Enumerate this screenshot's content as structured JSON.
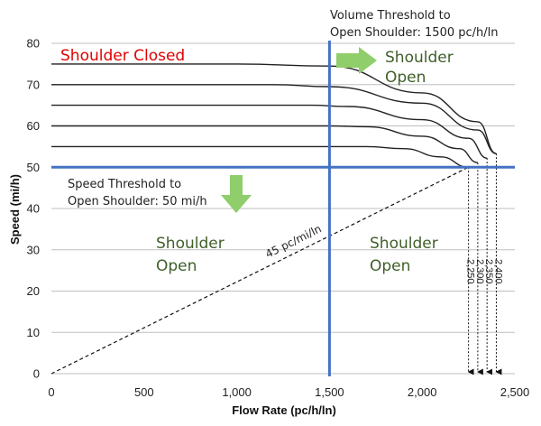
{
  "chart_data": {
    "type": "line",
    "title": "",
    "xlabel": "Flow Rate (pc/h/ln)",
    "ylabel": "Speed (mi/h)",
    "xlim": [
      0,
      2500
    ],
    "ylim": [
      0,
      80
    ],
    "x_ticks": [
      "0",
      "500",
      "1,000",
      "1,500",
      "2,000",
      "2,500"
    ],
    "y_ticks": [
      "0",
      "10",
      "20",
      "30",
      "40",
      "50",
      "60",
      "70",
      "80"
    ],
    "grid": "horizontal",
    "legend": "none",
    "series": [
      {
        "free_flow_speed": 75,
        "capacity": 2400,
        "x": [
          0,
          1000,
          1500,
          2000,
          2300,
          2400
        ],
        "y": [
          75,
          75,
          74.5,
          68,
          61,
          53.3
        ]
      },
      {
        "free_flow_speed": 70,
        "capacity": 2400,
        "x": [
          0,
          1200,
          1500,
          2000,
          2300,
          2400
        ],
        "y": [
          70,
          70,
          69.5,
          65.5,
          59,
          53.3
        ]
      },
      {
        "free_flow_speed": 65,
        "capacity": 2350,
        "x": [
          0,
          1400,
          1600,
          2000,
          2250,
          2350
        ],
        "y": [
          65,
          65,
          64.7,
          61.5,
          57,
          52.2
        ]
      },
      {
        "free_flow_speed": 60,
        "capacity": 2300,
        "x": [
          0,
          1500,
          1700,
          2000,
          2200,
          2300
        ],
        "y": [
          60,
          60,
          59.8,
          57.5,
          54.5,
          51.1
        ]
      },
      {
        "free_flow_speed": 55,
        "capacity": 2250,
        "x": [
          0,
          1700,
          1900,
          2100,
          2250
        ],
        "y": [
          55,
          55,
          54.5,
          52.5,
          50
        ]
      }
    ],
    "density_line": {
      "label": "45 pc/mi/ln",
      "x": [
        0,
        2250
      ],
      "y": [
        0,
        50
      ]
    },
    "capacity_labels": [
      "2,250",
      "2,300",
      "2,350",
      "2,400"
    ],
    "capacity_values": [
      2250,
      2300,
      2350,
      2400
    ],
    "thresholds": {
      "flow": 1500,
      "speed": 50
    },
    "annotations": {
      "volume_threshold": [
        "Volume Threshold to",
        "Open Shoulder: 1500 pc/h/ln"
      ],
      "speed_threshold": [
        "Speed Threshold to",
        "Open Shoulder: 50 mi/h"
      ],
      "shoulder_closed": "Shoulder Closed",
      "shoulder_open_top_right": [
        "Shoulder",
        "Open"
      ],
      "shoulder_open_left": [
        "Shoulder",
        "Open"
      ],
      "shoulder_open_bottom_right": [
        "Shoulder",
        "Open"
      ]
    },
    "colors": {
      "threshold_lines": "#4472c4",
      "arrows": "#8fce6a",
      "shoulder_closed_text": "#e00000",
      "shoulder_open_text": "#3f5f2a",
      "curves": "#222222",
      "grid": "#bfbfbf"
    }
  }
}
